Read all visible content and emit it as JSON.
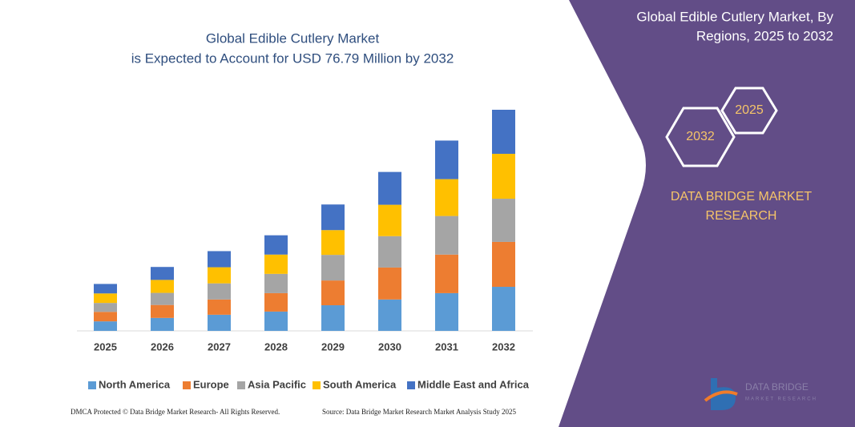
{
  "chart_data": {
    "type": "stacked_bar",
    "title": "Global Edible Cutlery Market",
    "subtitle": "is Expected to Account for USD 76.79 Million by 2032",
    "categories": [
      "2025",
      "2026",
      "2027",
      "2028",
      "2029",
      "2030",
      "2031",
      "2032"
    ],
    "series": [
      {
        "name": "North America",
        "color": "#5b9bd5",
        "values": [
          3.3,
          4.5,
          5.6,
          6.7,
          8.9,
          10.9,
          13.1,
          15.3
        ]
      },
      {
        "name": "Europe",
        "color": "#ed7d31",
        "values": [
          3.3,
          4.5,
          5.3,
          6.4,
          8.6,
          11.1,
          13.4,
          15.6
        ]
      },
      {
        "name": "Asia Pacific",
        "color": "#a5a5a5",
        "values": [
          3.1,
          4.2,
          5.6,
          6.7,
          8.9,
          10.9,
          13.4,
          15.0
        ]
      },
      {
        "name": "South America",
        "color": "#ffc000",
        "values": [
          3.3,
          4.5,
          5.6,
          6.7,
          8.6,
          10.9,
          12.8,
          15.6
        ]
      },
      {
        "name": "Middle East and Africa",
        "color": "#4472c4",
        "values": [
          3.3,
          4.5,
          5.6,
          6.7,
          8.9,
          11.4,
          13.4,
          15.3
        ]
      }
    ],
    "ylim": [
      0,
      80
    ],
    "legend": "bottom"
  },
  "panel": {
    "title_line1": "Global Edible Cutlery Market, By",
    "title_line2": "Regions, 2025 to 2032",
    "hex_end": "2032",
    "hex_start": "2025",
    "brand_line1": "DATA BRIDGE MARKET",
    "brand_line2": "RESEARCH",
    "logo_line1": "DATA BRIDGE",
    "logo_line2": "MARKET RESEARCH"
  },
  "footer": {
    "left": "DMCA Protected © Data Bridge Market Research- All Rights Reserved.",
    "right": "Source: Data Bridge Market Research Market Analysis Study 2025"
  }
}
